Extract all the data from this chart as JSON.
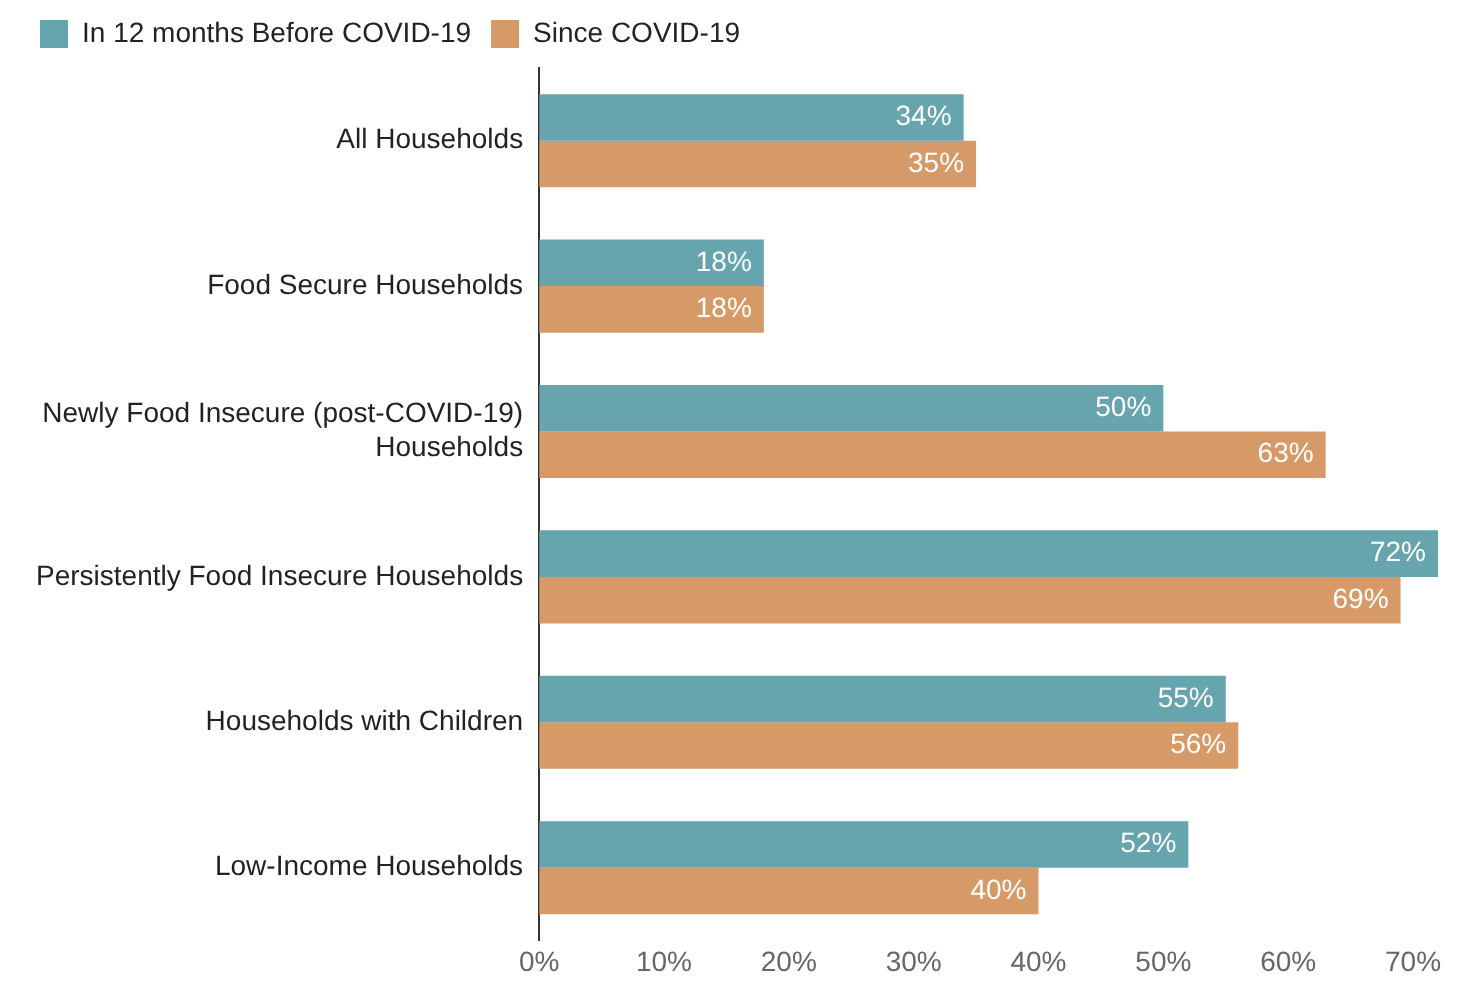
{
  "chart_data": {
    "type": "bar",
    "orientation": "horizontal",
    "categories": [
      "All Households",
      "Food Secure Households",
      "Newly Food Insecure (post-COVID-19) Households",
      "Persistently Food Insecure Households",
      "Households with Children",
      "Low-Income Households"
    ],
    "series": [
      {
        "name": "In 12 months Before COVID-19",
        "color": "#66a5ad",
        "values": [
          34,
          18,
          50,
          72,
          55,
          52
        ],
        "value_labels": [
          "34%",
          "18%",
          "50%",
          "72%",
          "55%",
          "52%"
        ]
      },
      {
        "name": "Since COVID-19",
        "color": "#d59a68",
        "values": [
          35,
          18,
          63,
          69,
          56,
          40
        ],
        "value_labels": [
          "35%",
          "18%",
          "63%",
          "69%",
          "56%",
          "40%"
        ]
      }
    ],
    "xlim": [
      0,
      72
    ],
    "xticks": [
      {
        "value": 0,
        "label": "0%"
      },
      {
        "value": 10,
        "label": "10%"
      },
      {
        "value": 20,
        "label": "20%"
      },
      {
        "value": 30,
        "label": "30%"
      },
      {
        "value": 40,
        "label": "40%"
      },
      {
        "value": 50,
        "label": "50%"
      },
      {
        "value": 60,
        "label": "60%"
      },
      {
        "value": 70,
        "label": "70%"
      }
    ],
    "grid": false,
    "legend": "top left"
  }
}
